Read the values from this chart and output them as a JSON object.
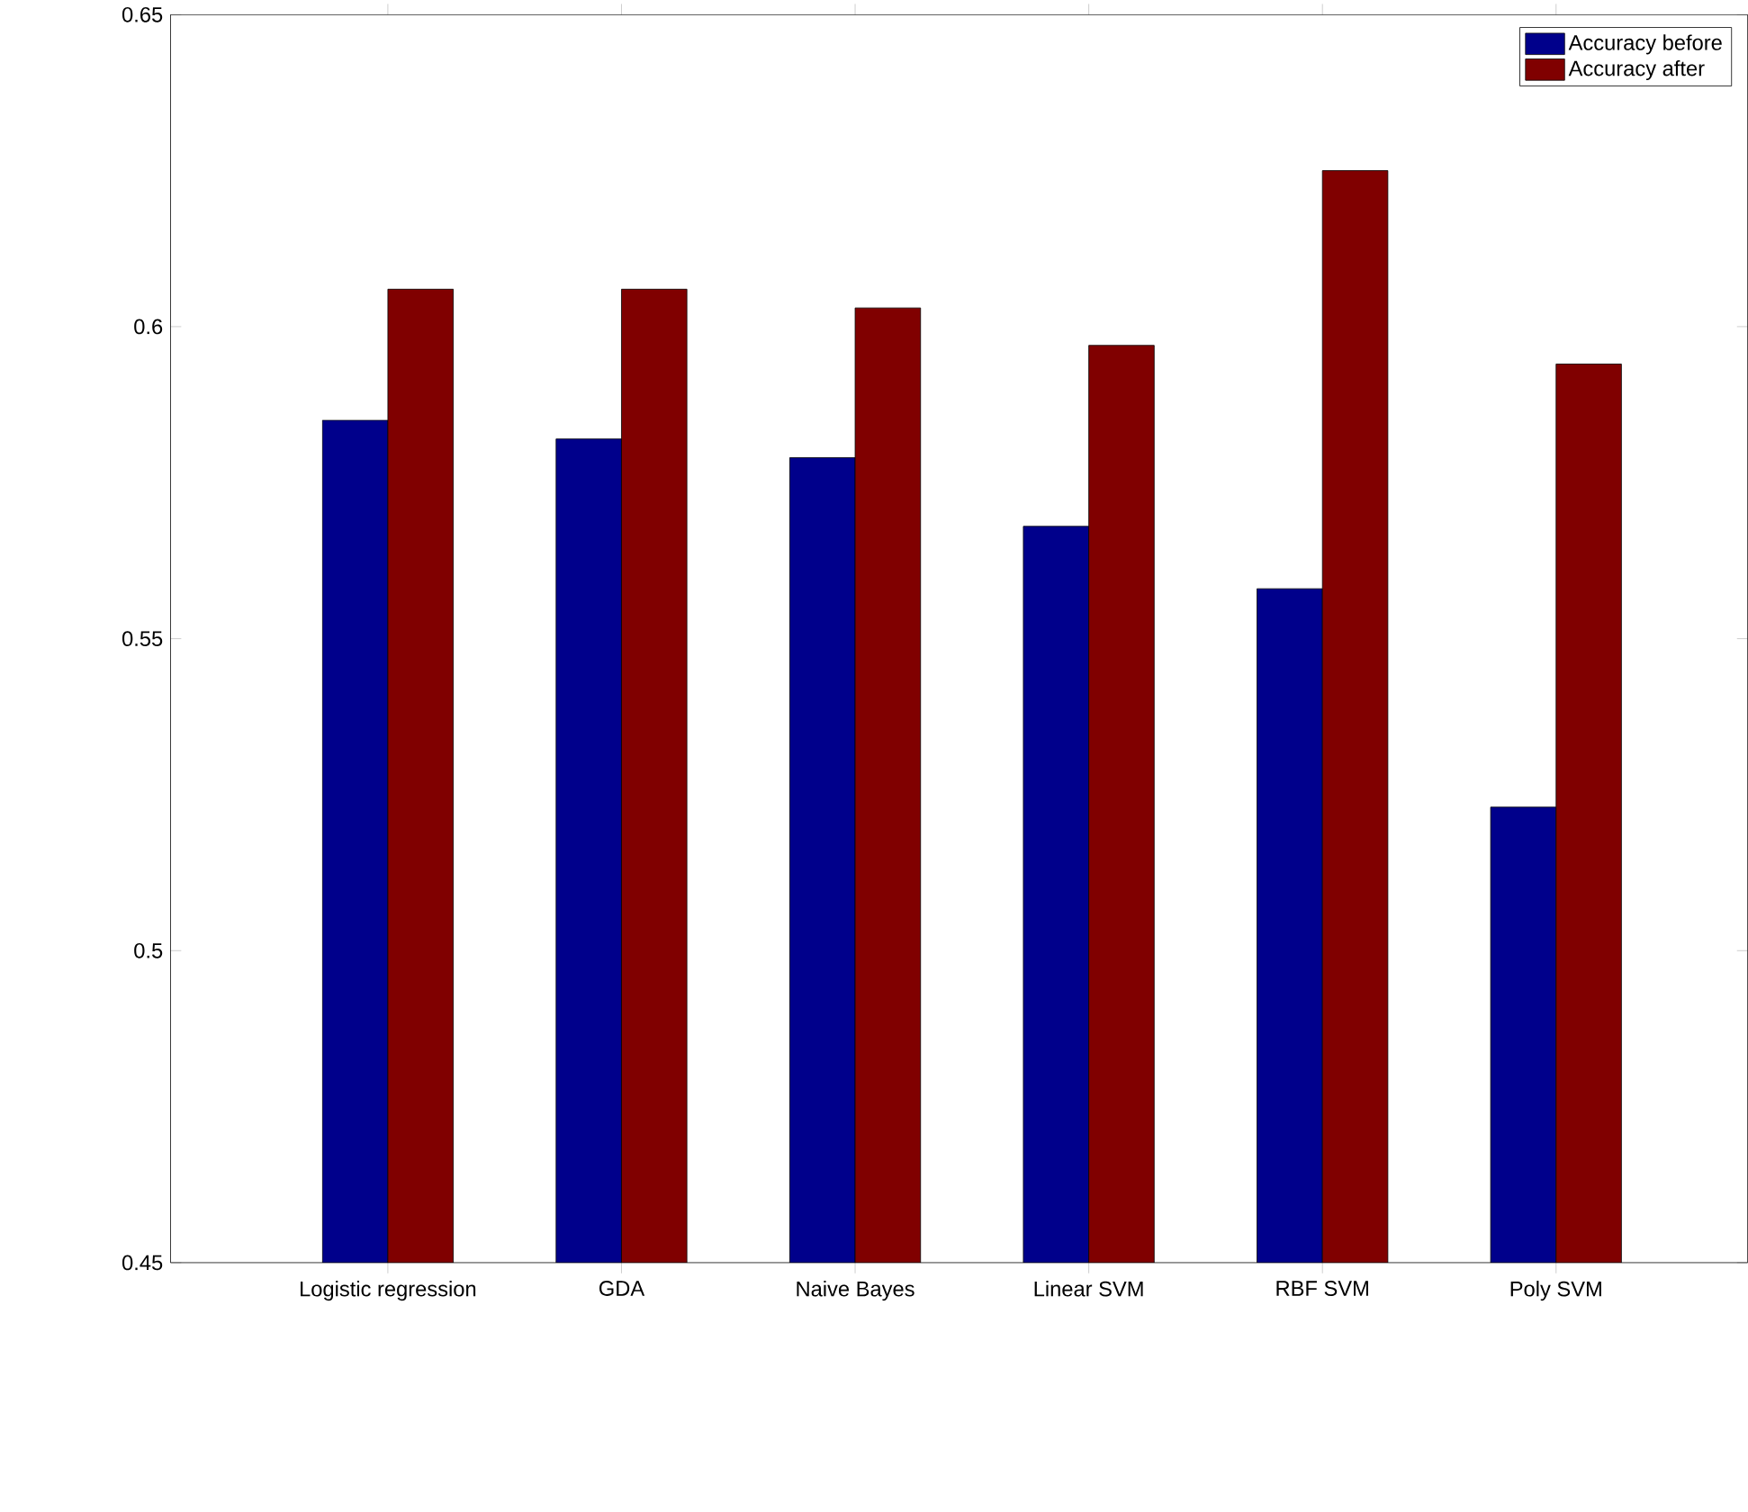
{
  "chart_data": {
    "type": "bar",
    "categories": [
      "Logistic regression",
      "GDA",
      "Naive Bayes",
      "Linear SVM",
      "RBF SVM",
      "Poly SVM"
    ],
    "series": [
      {
        "name": "Accuracy before",
        "color": "#00008b",
        "values": [
          0.585,
          0.582,
          0.579,
          0.568,
          0.558,
          0.523
        ]
      },
      {
        "name": "Accuracy after",
        "color": "#800000",
        "values": [
          0.606,
          0.606,
          0.603,
          0.597,
          0.625,
          0.594
        ]
      }
    ],
    "ylim": [
      0.45,
      0.65
    ],
    "yticks": [
      0.45,
      0.5,
      0.55,
      0.6,
      0.65
    ],
    "legend": "top right"
  }
}
